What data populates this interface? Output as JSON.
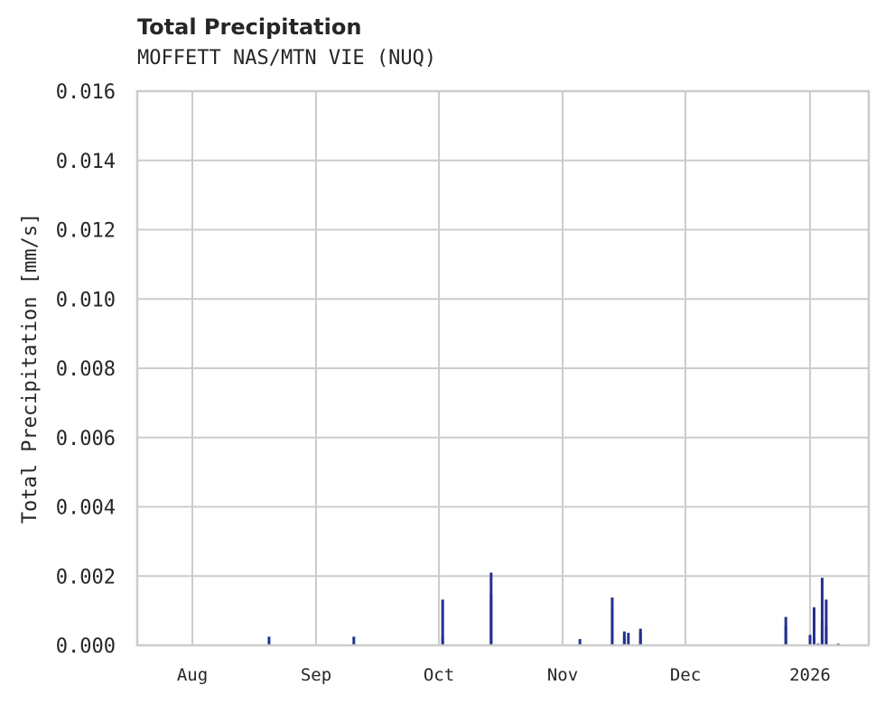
{
  "chart_data": {
    "type": "bar",
    "title": "Total Precipitation",
    "subtitle": "MOFFETT NAS/MTN VIE (NUQ)",
    "xlabel": "",
    "ylabel": "Total Precipitation [mm/s]",
    "ylim": [
      0,
      0.016
    ],
    "grid": true,
    "legend": null,
    "y_ticks": [
      "0.000",
      "0.002",
      "0.004",
      "0.006",
      "0.008",
      "0.010",
      "0.012",
      "0.014",
      "0.016"
    ],
    "x_ticks": [
      "Aug",
      "Sep",
      "Oct",
      "Nov",
      "Dec",
      "2026"
    ],
    "series": [
      {
        "name": "Total Precipitation",
        "color": "#23318f",
        "points": [
          {
            "date": "2025-08-20",
            "value": 0.00025
          },
          {
            "date": "2025-09-10",
            "value": 0.00025
          },
          {
            "date": "2025-10-02",
            "value": 0.00132
          },
          {
            "date": "2025-10-02",
            "value": 0.00025
          },
          {
            "date": "2025-10-14",
            "value": 0.0021
          },
          {
            "date": "2025-10-14",
            "value": 0.00148
          },
          {
            "date": "2025-11-05",
            "value": 0.00018
          },
          {
            "date": "2025-11-13",
            "value": 0.00138
          },
          {
            "date": "2025-11-13",
            "value": 0.0011
          },
          {
            "date": "2025-11-16",
            "value": 0.0004
          },
          {
            "date": "2025-11-16",
            "value": 0.00025
          },
          {
            "date": "2025-11-17",
            "value": 0.00036
          },
          {
            "date": "2025-11-20",
            "value": 0.00038
          },
          {
            "date": "2025-11-20",
            "value": 0.00048
          },
          {
            "date": "2025-12-26",
            "value": 0.00082
          },
          {
            "date": "2025-12-26",
            "value": 0.00055
          },
          {
            "date": "2026-01-01",
            "value": 0.0003
          },
          {
            "date": "2026-01-02",
            "value": 0.0011
          },
          {
            "date": "2026-01-03",
            "value": 5e-05
          },
          {
            "date": "2026-01-04",
            "value": 0.00195
          },
          {
            "date": "2026-01-04",
            "value": 0.0007
          },
          {
            "date": "2026-01-05",
            "value": 0.00132
          },
          {
            "date": "2026-01-05",
            "value": 0.00055
          },
          {
            "date": "2026-01-08",
            "value": 5e-05
          }
        ]
      }
    ]
  },
  "colors": {
    "bar": "#23318f",
    "grid": "#cccccc",
    "text": "#262626"
  }
}
